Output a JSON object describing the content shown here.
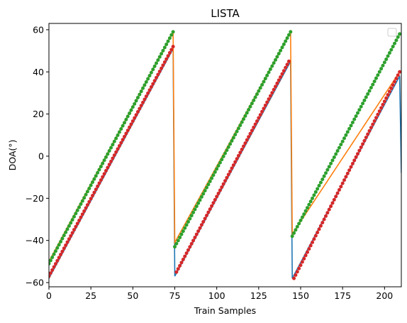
{
  "chart_data": {
    "type": "line",
    "title": "LISTA",
    "xlabel": "Train Samples",
    "ylabel": "DOA(°)",
    "xlim": [
      0,
      210
    ],
    "ylim": [
      -62,
      63
    ],
    "xticks": [
      0,
      25,
      50,
      75,
      100,
      125,
      150,
      175,
      200
    ],
    "yticks": [
      -60,
      -40,
      -20,
      0,
      20,
      40,
      60
    ],
    "grid": false,
    "legend": "top-right (empty)",
    "series": [
      {
        "style": "line",
        "color": "#1f77b4",
        "segments": [
          {
            "x": [
              0,
              74
            ],
            "y": [
              -58,
              51
            ]
          },
          {
            "x": [
              75,
              144
            ],
            "y": [
              -57,
              45
            ]
          },
          {
            "x": [
              145,
              209
            ],
            "y": [
              -58,
              38
            ]
          },
          {
            "x": [
              210
            ],
            "y": [
              -8
            ]
          }
        ]
      },
      {
        "style": "line",
        "color": "#ff7f0e",
        "segments": [
          {
            "x": [
              0,
              74
            ],
            "y": [
              -50,
              59
            ]
          },
          {
            "x": [
              75,
              144
            ],
            "y": [
              -41,
              59
            ]
          },
          {
            "x": [
              145,
              209
            ],
            "y": [
              -37,
              40
            ]
          }
        ]
      },
      {
        "style": "scatter",
        "color": "#2ca02c",
        "segments": [
          {
            "x": [
              0,
              74
            ],
            "y": [
              -51,
              59
            ]
          },
          {
            "x": [
              75,
              144
            ],
            "y": [
              -43,
              59
            ]
          },
          {
            "x": [
              145,
              209
            ],
            "y": [
              -38,
              58
            ]
          }
        ]
      },
      {
        "style": "scatter",
        "color": "#d62728",
        "segments": [
          {
            "x": [
              0,
              74
            ],
            "y": [
              -57,
              52
            ]
          },
          {
            "x": [
              76,
              143
            ],
            "y": [
              -55,
              45
            ]
          },
          {
            "x": [
              146,
              209
            ],
            "y": [
              -58,
              40
            ]
          }
        ]
      }
    ]
  }
}
